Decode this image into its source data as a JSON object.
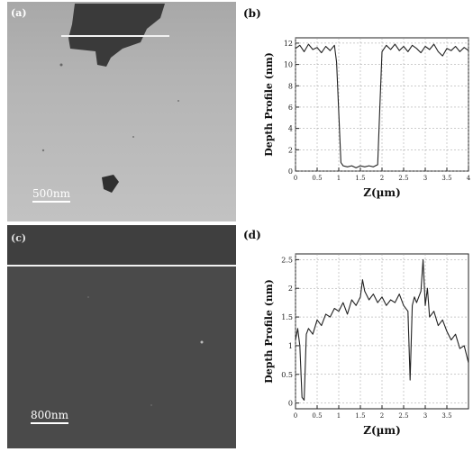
{
  "panel_a": {
    "label": "(a)",
    "scalebar": "500nm"
  },
  "panel_b": {
    "label": "(b)"
  },
  "panel_c": {
    "label": "(c)",
    "scalebar": "800nm"
  },
  "panel_d": {
    "label": "(d)"
  },
  "chart_data": [
    {
      "type": "line",
      "xlabel": "Z(µm)",
      "ylabel": "Depth Profile (nm)",
      "xlim": [
        0,
        4
      ],
      "ylim": [
        0,
        12.5
      ],
      "xticks": [
        0,
        0.5,
        1,
        1.5,
        2,
        2.5,
        3,
        3.5,
        4
      ],
      "xtick_labels": [
        "0",
        "0.5",
        "1",
        "1.5",
        "2",
        "2.5",
        "3",
        "3.5",
        "4"
      ],
      "yticks": [
        0,
        2,
        4,
        6,
        8,
        10,
        12
      ],
      "ytick_labels": [
        "0",
        "2",
        "4",
        "6",
        "8",
        "10",
        "12"
      ],
      "grid": true,
      "series": [
        {
          "x": [
            0,
            0.1,
            0.2,
            0.3,
            0.4,
            0.5,
            0.6,
            0.7,
            0.8,
            0.9,
            0.95,
            1.0,
            1.05,
            1.1,
            1.2,
            1.3,
            1.4,
            1.5,
            1.6,
            1.7,
            1.8,
            1.9,
            1.95,
            2.0,
            2.1,
            2.2,
            2.3,
            2.4,
            2.5,
            2.6,
            2.7,
            2.8,
            2.9,
            3.0,
            3.1,
            3.2,
            3.3,
            3.4,
            3.5,
            3.6,
            3.7,
            3.8,
            3.9,
            4.0
          ],
          "y": [
            11.5,
            11.8,
            11.2,
            11.9,
            11.4,
            11.6,
            11.1,
            11.7,
            11.3,
            11.8,
            10.2,
            5.5,
            0.8,
            0.5,
            0.4,
            0.5,
            0.3,
            0.5,
            0.4,
            0.5,
            0.4,
            0.6,
            6.0,
            11.2,
            11.8,
            11.4,
            11.9,
            11.3,
            11.7,
            11.2,
            11.8,
            11.5,
            11.1,
            11.7,
            11.4,
            11.9,
            11.2,
            10.8,
            11.5,
            11.3,
            11.7,
            11.2,
            11.6,
            11.3
          ]
        }
      ]
    },
    {
      "type": "line",
      "xlabel": "Z(µm)",
      "ylabel": "Depth Profile (nm)",
      "xlim": [
        0,
        4
      ],
      "ylim": [
        -0.1,
        2.6
      ],
      "xticks": [
        0,
        0.5,
        1,
        1.5,
        2,
        2.5,
        3,
        3.5
      ],
      "xtick_labels": [
        "0",
        "0.5",
        "1",
        "1.5",
        "2",
        "2.5",
        "3",
        "3.5"
      ],
      "yticks": [
        0,
        0.5,
        1,
        1.5,
        2,
        2.5
      ],
      "ytick_labels": [
        "0",
        "0.5",
        "1",
        "1.5",
        "2",
        "2.5"
      ],
      "grid": true,
      "series": [
        {
          "x": [
            0,
            0.05,
            0.1,
            0.15,
            0.2,
            0.25,
            0.3,
            0.4,
            0.5,
            0.6,
            0.7,
            0.8,
            0.9,
            1.0,
            1.1,
            1.2,
            1.3,
            1.4,
            1.5,
            1.55,
            1.6,
            1.7,
            1.8,
            1.9,
            2.0,
            2.1,
            2.2,
            2.3,
            2.4,
            2.5,
            2.6,
            2.65,
            2.7,
            2.75,
            2.8,
            2.9,
            2.95,
            3.0,
            3.05,
            3.1,
            3.2,
            3.3,
            3.4,
            3.5,
            3.6,
            3.7,
            3.8,
            3.9,
            4.0
          ],
          "y": [
            1.1,
            1.3,
            1.0,
            0.1,
            0.05,
            1.2,
            1.3,
            1.2,
            1.45,
            1.35,
            1.55,
            1.5,
            1.65,
            1.6,
            1.75,
            1.55,
            1.8,
            1.7,
            1.85,
            2.15,
            1.95,
            1.8,
            1.9,
            1.75,
            1.85,
            1.7,
            1.8,
            1.75,
            1.9,
            1.7,
            1.6,
            0.4,
            1.7,
            1.85,
            1.75,
            1.95,
            2.5,
            1.7,
            2.0,
            1.5,
            1.6,
            1.35,
            1.45,
            1.25,
            1.1,
            1.2,
            0.95,
            1.0,
            0.7
          ]
        }
      ]
    }
  ]
}
